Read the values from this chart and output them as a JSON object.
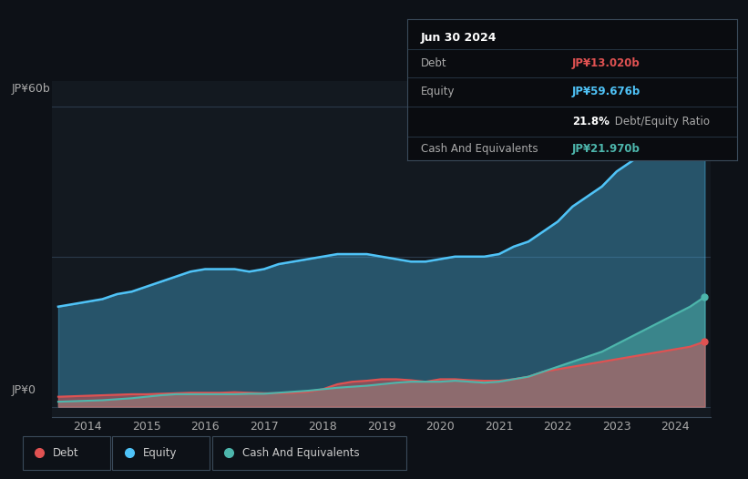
{
  "bg_color": "#0d1117",
  "plot_bg_color": "#131920",
  "title_date": "Jun 30 2024",
  "debt_label": "Debt",
  "debt_value": "JP¥13.020b",
  "equity_label": "Equity",
  "equity_value": "JP¥59.676b",
  "ratio_value": "21.8%",
  "ratio_label": " Debt/Equity Ratio",
  "cash_label": "Cash And Equivalents",
  "cash_value": "JP¥21.970b",
  "ylabel_top": "JP¥60b",
  "ylabel_bottom": "JP¥0",
  "x_ticks": [
    "2014",
    "2015",
    "2016",
    "2017",
    "2018",
    "2019",
    "2020",
    "2021",
    "2022",
    "2023",
    "2024"
  ],
  "debt_color": "#e05252",
  "equity_color": "#4fc3f7",
  "cash_color": "#4db6ac",
  "legend_border_color": "#3a4a5a",
  "table_bg": "#0a0c10",
  "grid_color": "#2a3a4a",
  "years": [
    2013.5,
    2013.75,
    2014.0,
    2014.25,
    2014.5,
    2014.75,
    2015.0,
    2015.25,
    2015.5,
    2015.75,
    2016.0,
    2016.25,
    2016.5,
    2016.75,
    2017.0,
    2017.25,
    2017.5,
    2017.75,
    2018.0,
    2018.25,
    2018.5,
    2018.75,
    2019.0,
    2019.25,
    2019.5,
    2019.75,
    2020.0,
    2020.25,
    2020.5,
    2020.75,
    2021.0,
    2021.25,
    2021.5,
    2021.75,
    2022.0,
    2022.25,
    2022.5,
    2022.75,
    2023.0,
    2023.25,
    2023.5,
    2023.75,
    2024.0,
    2024.25,
    2024.5
  ],
  "equity_data": [
    20,
    20.5,
    21,
    21.5,
    22.5,
    23,
    24,
    25,
    26,
    27,
    27.5,
    27.5,
    27.5,
    27,
    27.5,
    28.5,
    29,
    29.5,
    30,
    30.5,
    30.5,
    30.5,
    30,
    29.5,
    29,
    29,
    29.5,
    30,
    30,
    30,
    30.5,
    32,
    33,
    35,
    37,
    40,
    42,
    44,
    47,
    49,
    51,
    54,
    57,
    59,
    59.676
  ],
  "debt_data": [
    2.0,
    2.1,
    2.2,
    2.3,
    2.4,
    2.5,
    2.5,
    2.6,
    2.7,
    2.8,
    2.8,
    2.8,
    2.9,
    2.8,
    2.7,
    2.7,
    2.8,
    3.0,
    3.5,
    4.5,
    5.0,
    5.2,
    5.5,
    5.5,
    5.3,
    5.0,
    5.5,
    5.5,
    5.3,
    5.2,
    5.2,
    5.5,
    6.0,
    7.0,
    7.5,
    8.0,
    8.5,
    9.0,
    9.5,
    10.0,
    10.5,
    11.0,
    11.5,
    12.0,
    13.02
  ],
  "cash_data": [
    1.0,
    1.1,
    1.2,
    1.3,
    1.5,
    1.7,
    2.0,
    2.3,
    2.5,
    2.5,
    2.5,
    2.5,
    2.5,
    2.6,
    2.6,
    2.8,
    3.0,
    3.2,
    3.5,
    3.8,
    4.0,
    4.2,
    4.5,
    4.8,
    5.0,
    5.0,
    5.0,
    5.2,
    5.0,
    4.8,
    5.0,
    5.5,
    6.0,
    7.0,
    8.0,
    9.0,
    10.0,
    11.0,
    12.5,
    14.0,
    15.5,
    17.0,
    18.5,
    20.0,
    21.97
  ]
}
